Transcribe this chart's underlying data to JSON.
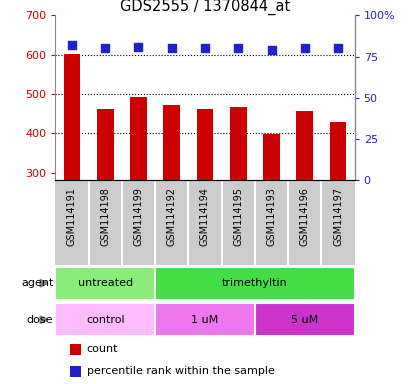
{
  "title": "GDS2555 / 1370844_at",
  "samples": [
    "GSM114191",
    "GSM114198",
    "GSM114199",
    "GSM114192",
    "GSM114194",
    "GSM114195",
    "GSM114193",
    "GSM114196",
    "GSM114197"
  ],
  "counts": [
    601,
    463,
    493,
    473,
    463,
    467,
    399,
    458,
    428
  ],
  "percentile_ranks": [
    82,
    80,
    81,
    80,
    80,
    80,
    79,
    80,
    80
  ],
  "ylim_left": [
    280,
    700
  ],
  "ylim_right": [
    0,
    100
  ],
  "yticks_left": [
    300,
    400,
    500,
    600,
    700
  ],
  "yticks_right": [
    0,
    25,
    50,
    75,
    100
  ],
  "bar_color": "#cc0000",
  "dot_color": "#2222cc",
  "bar_bottom": 280,
  "agent_groups": [
    {
      "label": "untreated",
      "start": 0,
      "end": 3,
      "color": "#88ee77"
    },
    {
      "label": "trimethyltin",
      "start": 3,
      "end": 9,
      "color": "#44dd44"
    }
  ],
  "dose_groups": [
    {
      "label": "control",
      "start": 0,
      "end": 3,
      "color": "#ffbbff"
    },
    {
      "label": "1 uM",
      "start": 3,
      "end": 6,
      "color": "#ee77ee"
    },
    {
      "label": "5 uM",
      "start": 6,
      "end": 9,
      "color": "#cc33cc"
    }
  ],
  "legend_count_color": "#cc0000",
  "legend_dot_color": "#2222cc",
  "tick_label_color_left": "#cc0000",
  "tick_label_color_right": "#2222cc",
  "xtick_bg_color": "#cccccc",
  "xtick_divider_color": "#ffffff",
  "grid_dotted_color": "#000000",
  "border_color": "#888888"
}
